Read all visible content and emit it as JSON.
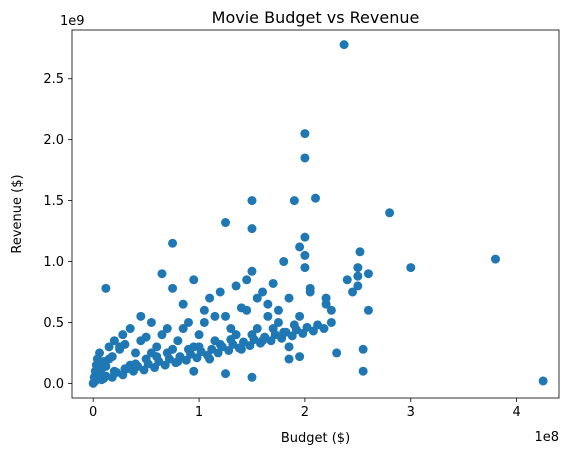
{
  "chart_data": {
    "type": "scatter",
    "title": "Movie Budget vs Revenue",
    "xlabel": "Budget ($)",
    "ylabel": "Revenue ($)",
    "x_offset_label": "1e8",
    "y_offset_label": "1e9",
    "x_ticks": [
      0,
      1,
      2,
      3,
      4
    ],
    "y_ticks": [
      0.0,
      0.5,
      1.0,
      1.5,
      2.0,
      2.5
    ],
    "x_tick_labels": [
      "0",
      "1",
      "2",
      "3",
      "4"
    ],
    "y_tick_labels": [
      "0.0",
      "0.5",
      "1.0",
      "1.5",
      "2.0",
      "2.5"
    ],
    "xlim": [
      -0.2,
      4.4
    ],
    "ylim": [
      -0.12,
      2.9
    ],
    "grid": false,
    "point_color": "#1f77b4",
    "series": [
      {
        "x": [
          0.0,
          0.01,
          0.02,
          0.03,
          0.04,
          0.05,
          0.06,
          0.08,
          0.1,
          0.12,
          0.15,
          0.18,
          0.2,
          0.25,
          0.28,
          0.3,
          0.35,
          0.4,
          0.45,
          0.5,
          0.55,
          0.6,
          0.65,
          0.7,
          0.75,
          0.8,
          0.85,
          0.9,
          0.95,
          1.0,
          1.05,
          1.1,
          1.15,
          1.2,
          1.25,
          1.3,
          1.35,
          1.4,
          1.45,
          1.5,
          1.55,
          1.6,
          1.65,
          1.7,
          1.75,
          1.8,
          1.85,
          1.9,
          1.95,
          2.0,
          2.05,
          2.1,
          2.2,
          2.3,
          2.37,
          2.5,
          2.55,
          2.6,
          2.8,
          3.0,
          3.8,
          4.25,
          0.02,
          0.05,
          0.1,
          0.12,
          0.2,
          0.3,
          0.4,
          0.5,
          0.6,
          0.7,
          0.8,
          0.9,
          1.0,
          1.1,
          1.2,
          1.3,
          1.4,
          1.5,
          1.6,
          1.7,
          1.8,
          1.9,
          2.0,
          2.0,
          2.0,
          2.0,
          1.5,
          1.5,
          1.5,
          1.25,
          0.75,
          0.95,
          1.85,
          2.2,
          2.5,
          2.52,
          2.6,
          2.55,
          2.45,
          1.95,
          0.05,
          0.15,
          0.25,
          0.35,
          0.45,
          0.55,
          0.65,
          0.75,
          0.85,
          0.95,
          1.05,
          1.15,
          1.25,
          1.35,
          1.45,
          1.55,
          1.65,
          1.75,
          1.85,
          1.95,
          2.05,
          2.25,
          2.4,
          2.5,
          0.08,
          0.12,
          0.18,
          0.22,
          0.28,
          0.32,
          0.38,
          0.42,
          0.48,
          0.52,
          0.58,
          0.62,
          0.68,
          0.72,
          0.78,
          0.82,
          0.88,
          0.92,
          0.98,
          1.02,
          1.08,
          1.12,
          1.18,
          1.22,
          1.28,
          1.32,
          1.38,
          1.42,
          1.48,
          1.52,
          1.58,
          1.62,
          1.68,
          1.72,
          1.78,
          1.82,
          1.88,
          1.92,
          1.98,
          2.02,
          2.08,
          2.12,
          2.18,
          2.25
        ],
        "y": [
          0.0,
          0.05,
          0.1,
          0.15,
          0.2,
          0.08,
          0.25,
          0.12,
          0.18,
          0.78,
          0.3,
          0.22,
          0.35,
          0.28,
          0.4,
          0.32,
          0.45,
          0.25,
          0.55,
          0.38,
          0.5,
          0.3,
          0.9,
          0.45,
          1.15,
          0.35,
          0.65,
          0.5,
          0.85,
          0.4,
          0.6,
          0.7,
          0.55,
          0.75,
          1.32,
          0.45,
          0.8,
          0.62,
          0.85,
          1.5,
          0.7,
          0.75,
          0.55,
          0.82,
          0.6,
          1.0,
          0.2,
          1.5,
          1.12,
          2.05,
          0.78,
          1.52,
          0.7,
          0.25,
          2.78,
          0.88,
          0.1,
          0.6,
          1.4,
          0.95,
          1.02,
          0.02,
          0.02,
          0.06,
          0.04,
          0.14,
          0.1,
          0.12,
          0.16,
          0.2,
          0.22,
          0.25,
          0.18,
          0.28,
          0.3,
          0.2,
          0.32,
          0.36,
          0.28,
          0.4,
          0.35,
          0.45,
          0.42,
          0.48,
          1.85,
          1.2,
          1.05,
          0.95,
          0.92,
          1.27,
          0.05,
          0.08,
          0.78,
          0.1,
          0.3,
          0.65,
          0.95,
          1.08,
          0.9,
          0.28,
          0.75,
          0.22,
          0.1,
          0.2,
          0.3,
          0.15,
          0.35,
          0.25,
          0.4,
          0.28,
          0.45,
          0.3,
          0.5,
          0.35,
          0.55,
          0.4,
          0.6,
          0.45,
          0.65,
          0.5,
          0.7,
          0.55,
          0.75,
          0.6,
          0.85,
          0.8,
          0.03,
          0.06,
          0.05,
          0.09,
          0.07,
          0.12,
          0.1,
          0.14,
          0.11,
          0.16,
          0.13,
          0.18,
          0.15,
          0.2,
          0.17,
          0.22,
          0.19,
          0.24,
          0.21,
          0.26,
          0.23,
          0.28,
          0.25,
          0.3,
          0.27,
          0.32,
          0.29,
          0.34,
          0.31,
          0.36,
          0.33,
          0.38,
          0.35,
          0.4,
          0.37,
          0.42,
          0.39,
          0.44,
          0.41,
          0.46,
          0.43,
          0.48,
          0.45,
          0.5
        ]
      }
    ]
  }
}
